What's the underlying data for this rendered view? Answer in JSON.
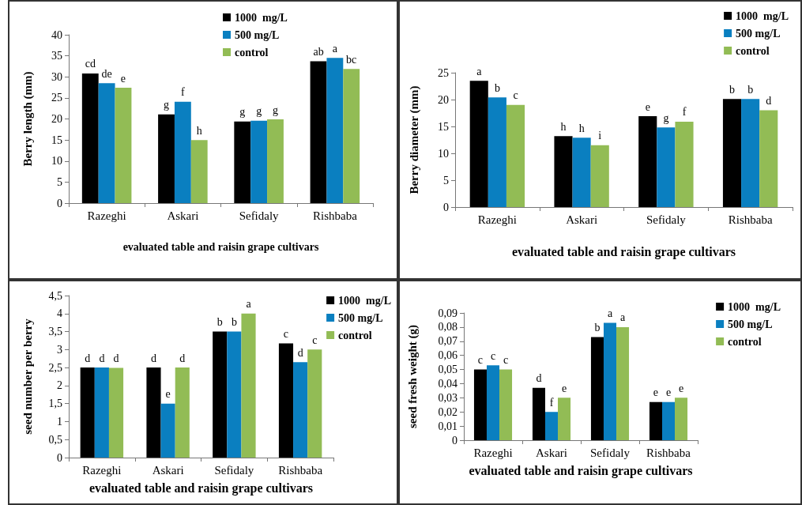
{
  "chart_data": [
    {
      "type": "bar",
      "xlabel": "evaluated table and raisin grape cultivars",
      "ylabel": "Berry length (mm)",
      "categories": [
        "Razeghi",
        "Askari",
        "Sefidaly",
        "Rishbaba"
      ],
      "series": [
        {
          "name": "1000  mg/L",
          "color": "#000000",
          "values": [
            30.8,
            21.1,
            19.4,
            33.7
          ],
          "value_labels": [
            "cd",
            "g",
            "g",
            "ab"
          ]
        },
        {
          "name": "500 mg/L",
          "color": "#0a7fc0",
          "values": [
            28.5,
            24.1,
            19.6,
            34.5
          ],
          "value_labels": [
            "de",
            "f",
            "g",
            "a"
          ]
        },
        {
          "name": "control",
          "color": "#92bc55",
          "values": [
            27.4,
            15,
            19.9,
            31.9
          ],
          "value_labels": [
            "e",
            "h",
            "g",
            "bc"
          ]
        }
      ],
      "ylim": [
        0,
        40
      ],
      "yticks": [
        0,
        5,
        10,
        15,
        20,
        25,
        30,
        35,
        40
      ],
      "grid": false,
      "legend": "top right"
    },
    {
      "type": "bar",
      "xlabel": "evaluated table and raisin grape cultivars",
      "ylabel": "Berry diameter (mm)",
      "categories": [
        "Razeghi",
        "Askari",
        "Sefidaly",
        "Rishbaba"
      ],
      "series": [
        {
          "name": "1000  mg/L",
          "color": "#000000",
          "values": [
            23.5,
            13.2,
            16.9,
            20.1
          ],
          "value_labels": [
            "a",
            "h",
            "e",
            "b"
          ]
        },
        {
          "name": "500 mg/L",
          "color": "#0a7fc0",
          "values": [
            20.4,
            12.9,
            14.8,
            20.1
          ],
          "value_labels": [
            "b",
            "h",
            "g",
            "b"
          ]
        },
        {
          "name": "control",
          "color": "#92bc55",
          "values": [
            19,
            11.5,
            15.9,
            18
          ],
          "value_labels": [
            "c",
            "i",
            "f",
            "d"
          ]
        }
      ],
      "ylim": [
        0,
        25
      ],
      "yticks": [
        0,
        5,
        10,
        15,
        20,
        25
      ],
      "grid": false,
      "legend": "top right"
    },
    {
      "type": "bar",
      "xlabel": "evaluated table and raisin grape cultivars",
      "ylabel": "seed number per berry",
      "categories": [
        "Razeghi",
        "Askari",
        "Sefidaly",
        "Rishbaba"
      ],
      "series": [
        {
          "name": "1000  mg/L",
          "color": "#000000",
          "values": [
            2.5,
            2.5,
            3.5,
            3.17
          ],
          "value_labels": [
            "d",
            "d",
            "b",
            "c"
          ]
        },
        {
          "name": "500 mg/L",
          "color": "#0a7fc0",
          "values": [
            2.5,
            1.5,
            3.5,
            2.65
          ],
          "value_labels": [
            "d",
            "e",
            "b",
            "d"
          ]
        },
        {
          "name": "control",
          "color": "#92bc55",
          "values": [
            2.49,
            2.5,
            4,
            3
          ],
          "value_labels": [
            "d",
            "d",
            "a",
            "c"
          ]
        }
      ],
      "ylim": [
        0,
        4.5
      ],
      "yticks": [
        0,
        {
          "value": 0.5,
          "label": "0,5"
        },
        1,
        {
          "value": 1.5,
          "label": "1,5"
        },
        2,
        {
          "value": 2.5,
          "label": "2,5"
        },
        3,
        {
          "value": 3.5,
          "label": "3,5"
        },
        4,
        {
          "value": 4.5,
          "label": "4,5"
        }
      ],
      "grid": false,
      "legend": "top right"
    },
    {
      "type": "bar",
      "xlabel": "evaluated table and raisin grape cultivars",
      "ylabel": "seed fresh weight (g)",
      "categories": [
        "Razeghi",
        "Askari",
        "Sefidaly",
        "Rishbaba"
      ],
      "series": [
        {
          "name": "1000  mg/L",
          "color": "#000000",
          "values": [
            0.05,
            0.037,
            0.073,
            0.027
          ],
          "value_labels": [
            "c",
            "d",
            "b",
            "e"
          ]
        },
        {
          "name": "500 mg/L",
          "color": "#0a7fc0",
          "values": [
            0.053,
            0.02,
            0.083,
            0.027
          ],
          "value_labels": [
            "c",
            "f",
            "a",
            "e"
          ]
        },
        {
          "name": "control",
          "color": "#92bc55",
          "values": [
            0.05,
            0.03,
            0.08,
            0.03
          ],
          "value_labels": [
            "c",
            "e",
            "a",
            "e"
          ]
        }
      ],
      "ylim": [
        0,
        0.09
      ],
      "yticks": [
        0,
        {
          "value": 0.01,
          "label": "0,01"
        },
        {
          "value": 0.02,
          "label": "0,02"
        },
        {
          "value": 0.03,
          "label": "0,03"
        },
        {
          "value": 0.04,
          "label": "0,04"
        },
        {
          "value": 0.05,
          "label": "0,05"
        },
        {
          "value": 0.06,
          "label": "0,06"
        },
        {
          "value": 0.07,
          "label": "0,07"
        },
        {
          "value": 0.08,
          "label": "0,08"
        },
        {
          "value": 0.09,
          "label": "0,09"
        }
      ],
      "grid": false,
      "legend": "top right"
    }
  ]
}
